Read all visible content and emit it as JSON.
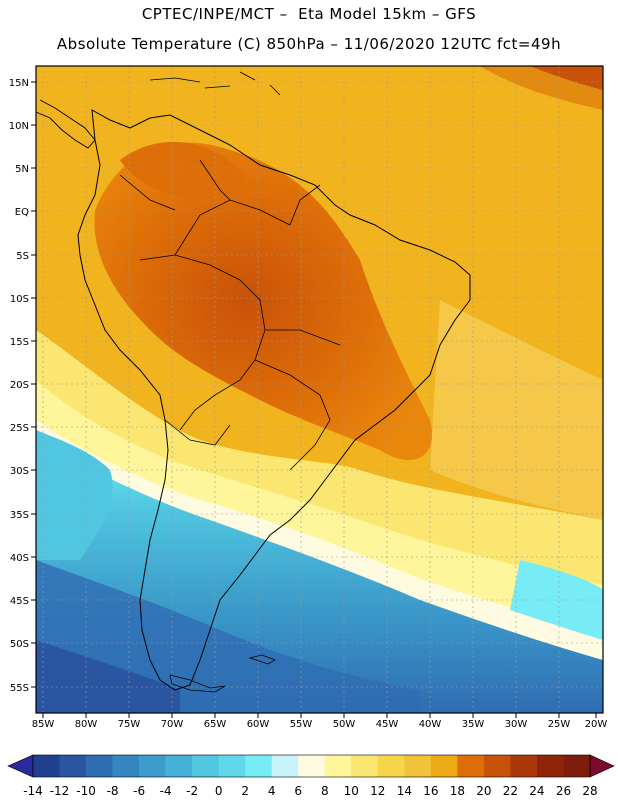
{
  "header": {
    "line1": "CPTEC/INPE/MCT –  Eta Model 15km – GFS",
    "line2": "Absolute Temperature (C) 850hPa – 11/06/2020 12UTC fct=49h"
  },
  "map": {
    "lat_labels": [
      "15N",
      "10N",
      "5N",
      "EQ",
      "5S",
      "10S",
      "15S",
      "20S",
      "25S",
      "30S",
      "35S",
      "40S",
      "45S",
      "50S",
      "55S"
    ],
    "lon_labels": [
      "85W",
      "80W",
      "75W",
      "70W",
      "65W",
      "60W",
      "55W",
      "50W",
      "45W",
      "40W",
      "35W",
      "30W",
      "25W",
      "20W"
    ]
  },
  "colorbar": {
    "labels": [
      "-14",
      "-12",
      "-10",
      "-8",
      "-6",
      "-4",
      "-2",
      "0",
      "2",
      "4",
      "6",
      "8",
      "10",
      "12",
      "14",
      "16",
      "18",
      "20",
      "22",
      "24",
      "26",
      "28"
    ],
    "colors": [
      "#1f3f8f",
      "#2a55a0",
      "#2f6db3",
      "#3585c1",
      "#3c9ccb",
      "#44b2d6",
      "#50c6e0",
      "#5fd9ea",
      "#77ecf6",
      "#c9f3fb",
      "#fffbe0",
      "#fff59b",
      "#fbe671",
      "#f7d54a",
      "#f1c33b",
      "#eeaa14",
      "#de6f08",
      "#c9520a",
      "#aa380b",
      "#8f2409",
      "#7e1c0e"
    ],
    "low_end": "#2b2b9c",
    "high_end": "#7c0a2c"
  }
}
